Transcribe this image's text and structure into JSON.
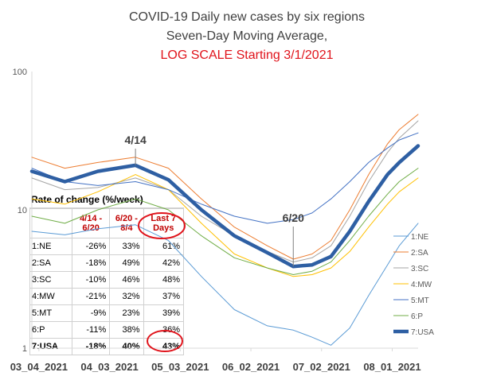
{
  "chart_data": {
    "type": "line",
    "title": [
      "COVID-19 Daily new cases by six regions",
      "Seven-Day Moving Average,",
      "LOG SCALE Starting 3/1/2021"
    ],
    "y_scale": "log",
    "ylim": [
      1,
      100
    ],
    "yticks": [
      "100",
      "10",
      "1"
    ],
    "xticks": [
      "03_04_2021",
      "04_03_2021",
      "05_03_2021",
      "06_02_2021",
      "07_02_2021",
      "08_01_2021"
    ],
    "xlim": [
      "2021-03-01",
      "2021-08-12"
    ],
    "x": [
      "2021-03-01",
      "2021-03-15",
      "2021-03-29",
      "2021-04-14",
      "2021-04-28",
      "2021-05-12",
      "2021-05-26",
      "2021-06-09",
      "2021-06-20",
      "2021-06-28",
      "2021-07-06",
      "2021-07-14",
      "2021-07-22",
      "2021-07-30",
      "2021-08-04",
      "2021-08-12"
    ],
    "series": [
      {
        "name": "1:NE",
        "color": "#5b9bd5",
        "width": 1,
        "values": [
          7.0,
          6.6,
          7.3,
          7.8,
          6.0,
          3.3,
          1.9,
          1.45,
          1.35,
          1.2,
          1.05,
          1.4,
          2.4,
          4.0,
          5.5,
          8.0
        ]
      },
      {
        "name": "2:SA",
        "color": "#ed7d31",
        "width": 1,
        "values": [
          24.0,
          20.0,
          22.0,
          24.0,
          20.0,
          12.0,
          7.5,
          5.5,
          4.4,
          4.8,
          6.0,
          10.0,
          18.0,
          30.0,
          38.0,
          49.0
        ]
      },
      {
        "name": "3:SC",
        "color": "#a5a5a5",
        "width": 1,
        "values": [
          17.0,
          14.0,
          14.5,
          17.0,
          14.0,
          9.0,
          6.5,
          5.0,
          4.2,
          4.5,
          5.5,
          9.0,
          16.0,
          26.0,
          33.0,
          44.0
        ]
      },
      {
        "name": "4:MW",
        "color": "#ffc000",
        "width": 1,
        "values": [
          12.0,
          11.0,
          13.5,
          18.0,
          14.0,
          8.0,
          4.8,
          3.8,
          3.3,
          3.4,
          3.8,
          5.0,
          7.5,
          11.0,
          13.5,
          17.0
        ]
      },
      {
        "name": "5:MT",
        "color": "#4472c4",
        "width": 1,
        "values": [
          20.0,
          16.0,
          15.0,
          16.0,
          14.0,
          11.0,
          9.0,
          8.0,
          8.5,
          9.5,
          12.0,
          16.0,
          22.0,
          28.0,
          32.0,
          36.0
        ]
      },
      {
        "name": "6:P",
        "color": "#70ad47",
        "width": 1,
        "values": [
          9.0,
          8.0,
          10.0,
          12.0,
          10.0,
          6.5,
          4.5,
          3.8,
          3.4,
          3.6,
          4.2,
          6.0,
          9.0,
          13.0,
          16.0,
          20.0
        ]
      },
      {
        "name": "7:USA",
        "color": "#2e5fa3",
        "width": 4.5,
        "values": [
          19.0,
          16.0,
          19.0,
          21.0,
          16.5,
          10.0,
          6.5,
          4.9,
          3.9,
          4.0,
          4.6,
          7.0,
          11.5,
          18.0,
          22.0,
          29.0
        ]
      }
    ],
    "annotations": [
      {
        "text": "4/14",
        "x": "2021-04-14",
        "y": 30.0
      },
      {
        "text": "6/20",
        "x": "2021-06-20",
        "y": 8.2
      }
    ],
    "legend": "right",
    "grid": false
  },
  "table": {
    "title": "Rate of change (%/week)",
    "headers": [
      "",
      "4/14 - 6/20",
      "6/20 - 8/4",
      "Last 7 Days"
    ],
    "rows": [
      [
        "1:NE",
        "-26%",
        "33%",
        "61%"
      ],
      [
        "2:SA",
        "-18%",
        "49%",
        "42%"
      ],
      [
        "3:SC",
        "-10%",
        "46%",
        "48%"
      ],
      [
        "4:MW",
        "-21%",
        "32%",
        "37%"
      ],
      [
        "5:MT",
        "-9%",
        "23%",
        "39%"
      ],
      [
        "6:P",
        "-11%",
        "38%",
        "36%"
      ],
      [
        "7:USA",
        "-18%",
        "40%",
        "43%"
      ]
    ]
  },
  "colors": {
    "title_red": "#e0131b",
    "usa_line": "#2e5fa3",
    "highlight_circle": "#e0131b"
  }
}
